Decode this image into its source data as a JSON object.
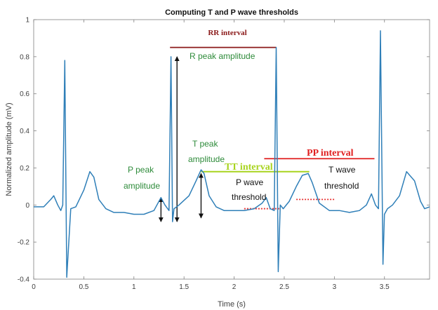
{
  "chart_data": {
    "type": "line",
    "title": "Computing T and P wave thresholds",
    "xlabel": "Time (s)",
    "ylabel": "Normalized amplitude (mV)",
    "xlim": [
      0,
      3.95
    ],
    "ylim": [
      -0.4,
      1.0
    ],
    "xticks": [
      0,
      0.5,
      1,
      1.5,
      2,
      2.5,
      3,
      3.5
    ],
    "xtick_labels": [
      "0",
      "0.5",
      "1",
      "1.5",
      "2",
      "2.5",
      "3",
      "3.5"
    ],
    "yticks": [
      -0.4,
      -0.2,
      0,
      0.2,
      0.4,
      0.6,
      0.8,
      1
    ],
    "ytick_labels": [
      "-0.4",
      "-0.2",
      "0",
      "0.2",
      "0.4",
      "0.6",
      "0.8",
      "1"
    ],
    "grid": false,
    "line_color": "#2f7fb8",
    "series": [
      {
        "x": [
          0.0,
          0.1,
          0.17,
          0.2,
          0.24,
          0.27,
          0.29,
          0.31,
          0.33,
          0.37,
          0.42,
          0.5,
          0.56,
          0.6,
          0.65,
          0.72,
          0.8,
          0.9,
          1.0,
          1.1,
          1.2,
          1.27,
          1.31,
          1.35,
          1.37,
          1.385,
          1.4,
          1.45,
          1.55,
          1.62,
          1.67,
          1.7,
          1.75,
          1.82,
          1.9,
          2.0,
          2.1,
          2.2,
          2.28,
          2.32,
          2.36,
          2.4,
          2.42,
          2.44,
          2.46,
          2.49,
          2.55,
          2.62,
          2.68,
          2.74,
          2.78,
          2.85,
          2.95,
          3.05,
          3.15,
          3.25,
          3.32,
          3.37,
          3.41,
          3.44,
          3.46,
          3.485,
          3.5,
          3.53,
          3.58,
          3.65,
          3.72,
          3.8,
          3.86,
          3.9,
          3.95
        ],
        "y": [
          -0.01,
          -0.01,
          0.03,
          0.05,
          0.0,
          -0.03,
          0.0,
          0.78,
          -0.39,
          -0.02,
          -0.01,
          0.08,
          0.18,
          0.15,
          0.03,
          -0.02,
          -0.04,
          -0.04,
          -0.05,
          -0.05,
          -0.03,
          0.04,
          0.0,
          -0.03,
          0.8,
          -0.09,
          -0.02,
          0.0,
          0.05,
          0.13,
          0.19,
          0.17,
          0.05,
          -0.01,
          -0.03,
          -0.03,
          -0.03,
          -0.02,
          0.01,
          0.04,
          -0.02,
          -0.03,
          0.85,
          -0.36,
          0.0,
          -0.02,
          0.02,
          0.1,
          0.16,
          0.17,
          0.12,
          0.01,
          -0.03,
          -0.03,
          -0.04,
          -0.03,
          0.0,
          0.06,
          0.0,
          -0.02,
          0.94,
          -0.32,
          -0.05,
          -0.02,
          0.0,
          0.05,
          0.18,
          0.13,
          0.02,
          -0.02,
          -0.01
        ]
      }
    ],
    "annotations": {
      "rr_label": "RR interval",
      "r_peak_label": "R peak amplitude",
      "p_peak_label_1": "P peak",
      "p_peak_label_2": "amplitude",
      "t_peak_label_1": "T peak",
      "t_peak_label_2": "amplitude",
      "tt_label": "TT interval",
      "pp_label": "PP interval",
      "p_thresh_label_1": "P wave",
      "p_thresh_label_2": "threshold",
      "t_thresh_label_1": "T wave",
      "t_thresh_label_2": "threshold"
    },
    "annotation_colors": {
      "rr": "#8b1a1a",
      "pp": "#e02020",
      "tt": "#a8d41e",
      "green_text": "#2e8b3a",
      "threshold": "#e83030"
    },
    "markers": {
      "rr_interval": {
        "x": [
          1.36,
          2.42
        ],
        "y": 0.85
      },
      "pp_interval": {
        "x": [
          2.3,
          3.4
        ],
        "y": 0.25
      },
      "tt_interval": {
        "x": [
          1.67,
          2.75
        ],
        "y": 0.18
      },
      "r_peak_arrow": {
        "x": 1.43,
        "y": [
          0.8,
          -0.09
        ]
      },
      "p_peak_arrow": {
        "x": 1.27,
        "y": [
          0.04,
          -0.09
        ]
      },
      "t_peak_arrow": {
        "x": 1.67,
        "y": [
          0.17,
          -0.07
        ]
      },
      "p_threshold": {
        "x": [
          2.1,
          2.45
        ],
        "y": -0.02
      },
      "t_threshold": {
        "x": [
          2.62,
          3.0
        ],
        "y": 0.03
      }
    }
  }
}
